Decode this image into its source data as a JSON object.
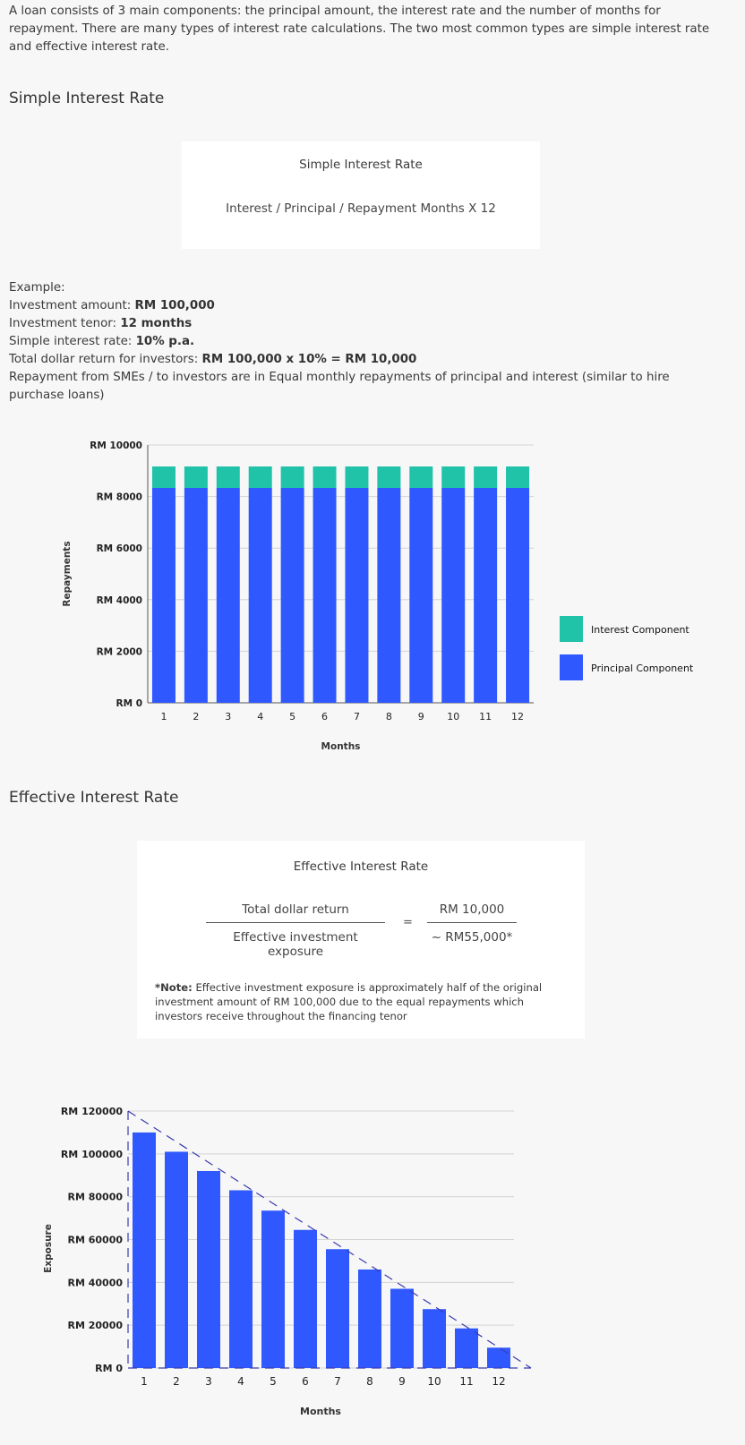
{
  "intro": "A loan consists of 3 main components: the principal amount, the interest rate and the number of months for repayment. There are many types of interest rate calculations. The two most common types are simple interest rate and effective interest rate.",
  "simple": {
    "heading": "Simple Interest Rate",
    "box_title": "Simple Interest Rate",
    "formula": "Interest / Principal / Repayment Months  X  12"
  },
  "example": {
    "label": "Example:",
    "rows": [
      {
        "label": "Investment amount: ",
        "value": "RM 100,000"
      },
      {
        "label": "Investment tenor: ",
        "value": "12 months"
      },
      {
        "label": "Simple interest rate: ",
        "value": "10% p.a."
      },
      {
        "label": "Total dollar return for investors: ",
        "value": "RM 100,000 x 10% = RM 10,000"
      }
    ],
    "note": "Repayment from SMEs / to investors are in Equal monthly repayments of principal and interest (similar to hire purchase loans)"
  },
  "effective": {
    "heading": "Effective Interest Rate",
    "box_title": "Effective Interest Rate",
    "num1": "Total dollar return",
    "den1": "Effective investment exposure",
    "eq": "=",
    "num2": "RM 10,000",
    "den2": "~ RM55,000*",
    "note_label": "*Note:",
    "note_text": " Effective investment exposure is approximately half of the original investment amount of RM 100,000 due to the equal repayments which investors receive throughout the financing tenor"
  },
  "chart_data": [
    {
      "type": "bar",
      "stacked": true,
      "categories": [
        "1",
        "2",
        "3",
        "4",
        "5",
        "6",
        "7",
        "8",
        "9",
        "10",
        "11",
        "12"
      ],
      "series": [
        {
          "name": "Principal Component",
          "color": "#3058ff",
          "values": [
            8333,
            8333,
            8333,
            8333,
            8333,
            8333,
            8333,
            8333,
            8333,
            8333,
            8333,
            8333
          ]
        },
        {
          "name": "Interest Component",
          "color": "#20c2a8",
          "values": [
            833,
            833,
            833,
            833,
            833,
            833,
            833,
            833,
            833,
            833,
            833,
            833
          ]
        }
      ],
      "legend_order": [
        "Interest Component",
        "Principal Component"
      ],
      "yticks": [
        "RM 0",
        "RM 2000",
        "RM 4000",
        "RM 6000",
        "RM 8000",
        "RM 10000"
      ],
      "ylim": [
        0,
        10000
      ],
      "xlabel": "Months",
      "ylabel": "Repayments",
      "grid": true,
      "legend": "right"
    },
    {
      "type": "bar",
      "categories": [
        "1",
        "2",
        "3",
        "4",
        "5",
        "6",
        "7",
        "8",
        "9",
        "10",
        "11",
        "12"
      ],
      "series": [
        {
          "color": "#3058ff",
          "values": [
            110000,
            101000,
            92000,
            83000,
            73500,
            64500,
            55500,
            46000,
            37000,
            27500,
            18500,
            9500
          ]
        }
      ],
      "trend_line": {
        "style": "dashed",
        "color": "#3b3bb0",
        "from": [
          0,
          120000
        ],
        "to": [
          12.5,
          0
        ]
      },
      "yticks": [
        "RM 0",
        "RM 20000",
        "RM 40000",
        "RM 60000",
        "RM 80000",
        "RM 100000",
        "RM 120000"
      ],
      "ylim": [
        0,
        120000
      ],
      "xlabel": "Months",
      "ylabel": "Exposure",
      "grid": true
    }
  ]
}
